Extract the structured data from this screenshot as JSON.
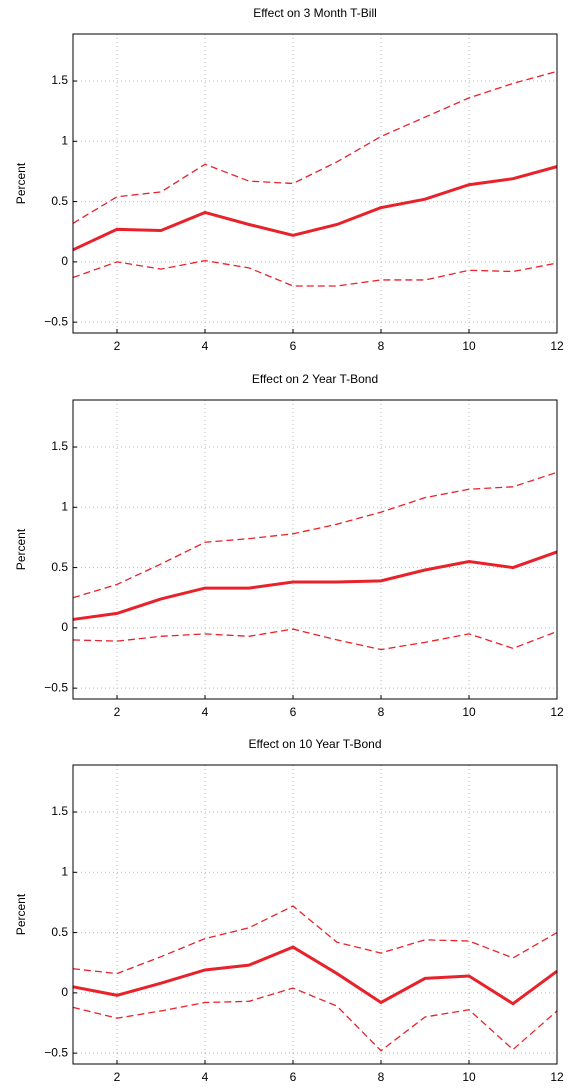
{
  "chart_data": [
    {
      "type": "line",
      "title": "Effect on 3 Month T-Bill",
      "y_label": "Percent",
      "x": [
        1,
        2,
        3,
        4,
        5,
        6,
        7,
        8,
        9,
        10,
        11,
        12
      ],
      "xlim": [
        1,
        12
      ],
      "xticks": [
        2,
        4,
        6,
        8,
        10,
        12
      ],
      "ylim": [
        -0.59,
        1.89
      ],
      "yticks": [
        {
          "value": -0.5,
          "label": "−0.5"
        },
        0,
        0.5,
        1,
        1.5
      ],
      "grid": true,
      "series": [
        {
          "color": "#e8222a",
          "style": "solid",
          "values": [
            0.1,
            0.27,
            0.26,
            0.41,
            0.31,
            0.22,
            0.31,
            0.45,
            0.52,
            0.64,
            0.69,
            0.79
          ]
        },
        {
          "color": "#e8222a",
          "style": "dashed",
          "values": [
            0.32,
            0.54,
            0.58,
            0.81,
            0.67,
            0.65,
            0.83,
            1.04,
            1.2,
            1.36,
            1.48,
            1.58
          ]
        },
        {
          "color": "#e8222a",
          "style": "dashed",
          "values": [
            -0.13,
            0.0,
            -0.06,
            0.01,
            -0.05,
            -0.2,
            -0.2,
            -0.15,
            -0.15,
            -0.07,
            -0.08,
            -0.01
          ]
        }
      ]
    },
    {
      "type": "line",
      "title": "Effect on 2 Year T-Bond",
      "y_label": "Percent",
      "x": [
        1,
        2,
        3,
        4,
        5,
        6,
        7,
        8,
        9,
        10,
        11,
        12
      ],
      "xlim": [
        1,
        12
      ],
      "xticks": [
        2,
        4,
        6,
        8,
        10,
        12
      ],
      "ylim": [
        -0.59,
        1.89
      ],
      "yticks": [
        {
          "value": -0.5,
          "label": "−0.5"
        },
        0,
        0.5,
        1,
        1.5
      ],
      "grid": true,
      "series": [
        {
          "color": "#e8222a",
          "style": "solid",
          "values": [
            0.07,
            0.12,
            0.24,
            0.33,
            0.33,
            0.38,
            0.38,
            0.39,
            0.48,
            0.55,
            0.5,
            0.63
          ]
        },
        {
          "color": "#e8222a",
          "style": "dashed",
          "values": [
            0.25,
            0.36,
            0.53,
            0.71,
            0.74,
            0.78,
            0.86,
            0.96,
            1.08,
            1.15,
            1.17,
            1.29
          ]
        },
        {
          "color": "#e8222a",
          "style": "dashed",
          "values": [
            -0.1,
            -0.11,
            -0.07,
            -0.05,
            -0.07,
            -0.01,
            -0.1,
            -0.18,
            -0.12,
            -0.05,
            -0.17,
            -0.03
          ]
        }
      ]
    },
    {
      "type": "line",
      "title": "Effect on 10 Year T-Bond",
      "y_label": "Percent",
      "x": [
        1,
        2,
        3,
        4,
        5,
        6,
        7,
        8,
        9,
        10,
        11,
        12
      ],
      "xlim": [
        1,
        12
      ],
      "xticks": [
        2,
        4,
        6,
        8,
        10,
        12
      ],
      "ylim": [
        -0.59,
        1.89
      ],
      "yticks": [
        {
          "value": -0.5,
          "label": "−0.5"
        },
        0,
        0.5,
        1,
        1.5
      ],
      "grid": true,
      "series": [
        {
          "color": "#e8222a",
          "style": "solid",
          "values": [
            0.05,
            -0.02,
            0.08,
            0.19,
            0.23,
            0.38,
            0.16,
            -0.08,
            0.12,
            0.14,
            -0.09,
            0.18
          ]
        },
        {
          "color": "#e8222a",
          "style": "dashed",
          "values": [
            0.2,
            0.16,
            0.3,
            0.45,
            0.54,
            0.72,
            0.42,
            0.33,
            0.44,
            0.43,
            0.29,
            0.5
          ]
        },
        {
          "color": "#e8222a",
          "style": "dashed",
          "values": [
            -0.12,
            -0.21,
            -0.15,
            -0.08,
            -0.07,
            0.04,
            -0.11,
            -0.48,
            -0.2,
            -0.14,
            -0.47,
            -0.15
          ]
        }
      ]
    }
  ]
}
